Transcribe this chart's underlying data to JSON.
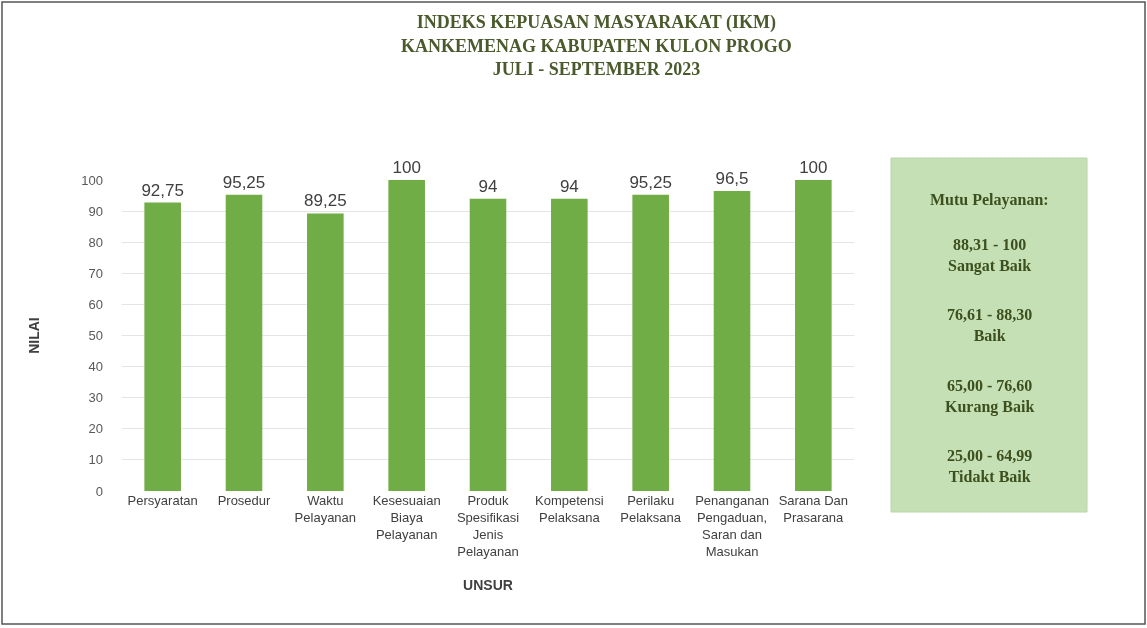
{
  "chart_data": {
    "type": "bar",
    "title": "INDEKS KEPUASAN MASYARAKAT (IKM)\nKANKEMENAG KABUPATEN KULON PROGO\nJULI - SEPTEMBER 2023",
    "xlabel": "UNSUR",
    "ylabel": "NILAI",
    "categories": [
      "Persyaratan",
      "Prosedur",
      "Waktu Pelayanan",
      "Kesesuaian Biaya Pelayanan",
      "Produk Spesifikasi Jenis Pelayanan",
      "Kompetensi Pelaksana",
      "Perilaku Pelaksana",
      "Penanganan Pengaduan, Saran dan Masukan",
      "Sarana Dan Prasarana"
    ],
    "values": [
      92.75,
      95.25,
      89.25,
      100,
      94,
      94,
      95.25,
      96.5,
      100
    ],
    "value_labels": [
      "92,75",
      "95,25",
      "89,25",
      "100",
      "94",
      "94",
      "95,25",
      "96,5",
      "100"
    ],
    "color": "#70ad47",
    "ylim": [
      0,
      100
    ],
    "yticks": [
      0,
      10,
      20,
      30,
      40,
      50,
      60,
      70,
      80,
      90,
      100
    ],
    "grid": "y",
    "annotations": [
      "Mutu Pelayanan:",
      "88,31 - 100\nSangat Baik",
      "76,61 - 88,30\nBaik",
      "65,00 - 76,60\nKurang Baik",
      "25,00 - 64,99\nTidakt Baik"
    ]
  }
}
